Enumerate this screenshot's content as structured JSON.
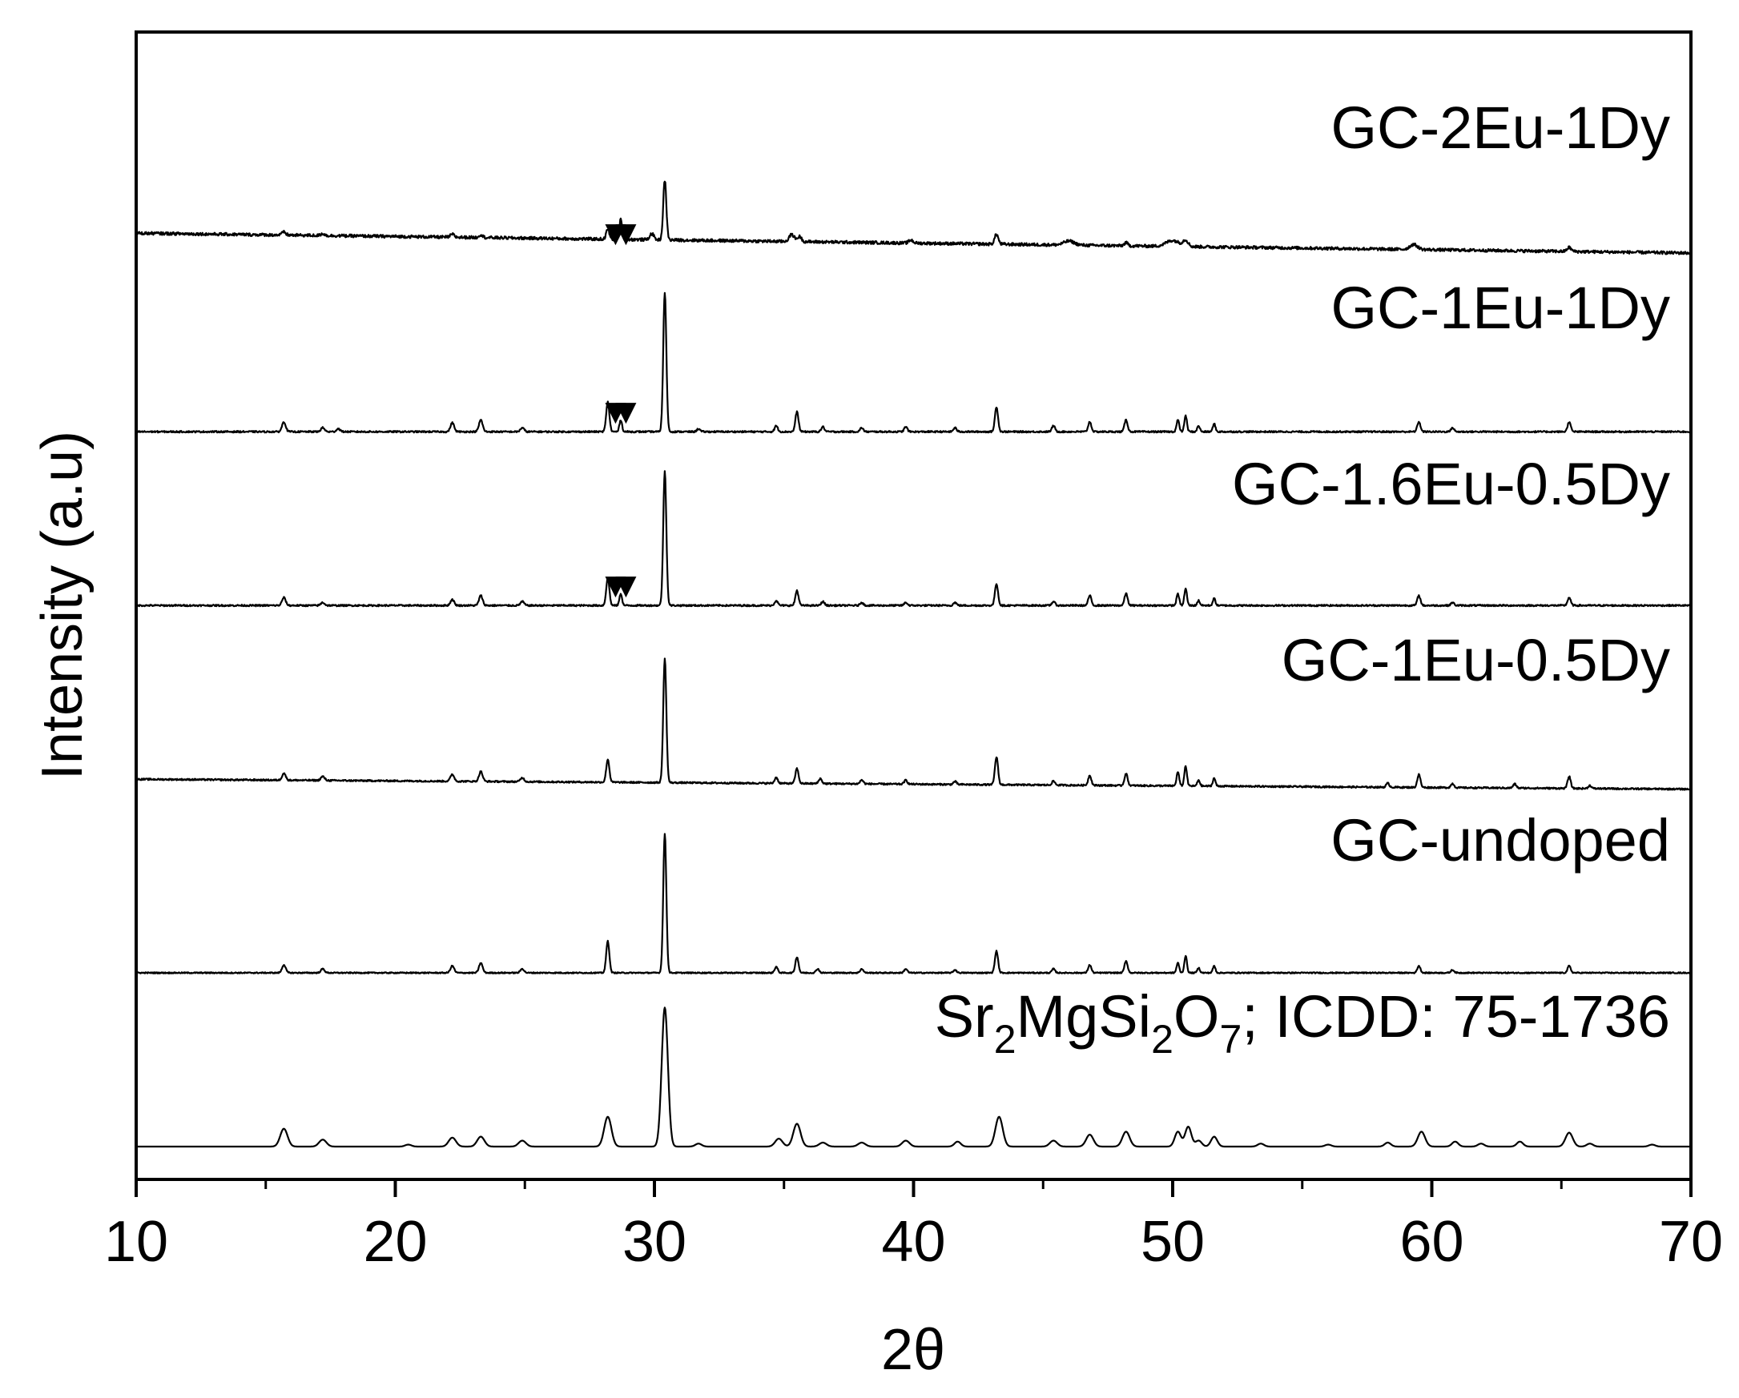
{
  "chart_data": {
    "type": "line",
    "xlabel": "2θ",
    "ylabel": "Intensity (a.u)",
    "xlim": [
      10,
      70
    ],
    "xticks": [
      "10",
      "20",
      "30",
      "40",
      "50",
      "60",
      "70"
    ],
    "xtick_values": [
      10,
      20,
      30,
      40,
      50,
      60,
      70
    ],
    "minor_xtick_values": [
      15,
      25,
      35,
      45,
      55,
      65
    ],
    "ylim": [
      0,
      11.5
    ],
    "yticks": [],
    "grid": false,
    "legend": "none",
    "marker_symbol": "▼",
    "series": [
      {
        "name": "Sr2MgSi2O7; ICDD: 75-1736",
        "label_parts": [
          {
            "t": "Sr",
            "sub": false
          },
          {
            "t": "2",
            "sub": true
          },
          {
            "t": "MgSi",
            "sub": false
          },
          {
            "t": "2",
            "sub": true
          },
          {
            "t": "O",
            "sub": false
          },
          {
            "t": "7",
            "sub": true
          },
          {
            "t": "; ICDD: 75-1736",
            "sub": false
          }
        ],
        "baseline": 0.0,
        "slope": 0.0,
        "noise": 0.0,
        "peaks": [
          [
            15.7,
            0.18,
            0.14
          ],
          [
            17.2,
            0.07,
            0.14
          ],
          [
            20.5,
            0.02,
            0.12
          ],
          [
            22.2,
            0.09,
            0.14
          ],
          [
            23.3,
            0.1,
            0.14
          ],
          [
            24.9,
            0.06,
            0.14
          ],
          [
            28.2,
            0.3,
            0.14
          ],
          [
            30.4,
            1.4,
            0.12
          ],
          [
            31.7,
            0.03,
            0.12
          ],
          [
            34.8,
            0.08,
            0.14
          ],
          [
            35.5,
            0.23,
            0.14
          ],
          [
            36.5,
            0.04,
            0.14
          ],
          [
            38.0,
            0.04,
            0.14
          ],
          [
            39.7,
            0.06,
            0.14
          ],
          [
            41.7,
            0.05,
            0.12
          ],
          [
            43.3,
            0.3,
            0.14
          ],
          [
            45.4,
            0.06,
            0.14
          ],
          [
            46.8,
            0.12,
            0.14
          ],
          [
            48.2,
            0.15,
            0.14
          ],
          [
            50.2,
            0.15,
            0.12
          ],
          [
            50.6,
            0.2,
            0.12
          ],
          [
            51.0,
            0.06,
            0.12
          ],
          [
            51.6,
            0.1,
            0.12
          ],
          [
            53.4,
            0.03,
            0.12
          ],
          [
            56.0,
            0.02,
            0.12
          ],
          [
            58.3,
            0.04,
            0.12
          ],
          [
            59.6,
            0.15,
            0.14
          ],
          [
            60.9,
            0.05,
            0.12
          ],
          [
            61.9,
            0.03,
            0.12
          ],
          [
            63.4,
            0.05,
            0.12
          ],
          [
            65.3,
            0.14,
            0.14
          ],
          [
            66.1,
            0.03,
            0.12
          ],
          [
            68.5,
            0.02,
            0.12
          ]
        ],
        "arrows": []
      },
      {
        "name": "GC-undoped",
        "baseline": 1.75,
        "slope": 0.0,
        "noise": 0.006,
        "peaks": [
          [
            15.7,
            0.08,
            0.07
          ],
          [
            17.2,
            0.04,
            0.07
          ],
          [
            22.2,
            0.07,
            0.07
          ],
          [
            23.3,
            0.1,
            0.07
          ],
          [
            24.9,
            0.04,
            0.07
          ],
          [
            28.2,
            0.32,
            0.06
          ],
          [
            30.4,
            1.4,
            0.06
          ],
          [
            34.7,
            0.06,
            0.06
          ],
          [
            35.5,
            0.16,
            0.06
          ],
          [
            36.3,
            0.04,
            0.06
          ],
          [
            38.0,
            0.04,
            0.06
          ],
          [
            39.7,
            0.04,
            0.06
          ],
          [
            41.6,
            0.03,
            0.06
          ],
          [
            43.2,
            0.22,
            0.06
          ],
          [
            45.4,
            0.04,
            0.06
          ],
          [
            46.8,
            0.08,
            0.06
          ],
          [
            48.2,
            0.12,
            0.06
          ],
          [
            50.2,
            0.1,
            0.05
          ],
          [
            50.5,
            0.17,
            0.05
          ],
          [
            51.0,
            0.05,
            0.05
          ],
          [
            51.6,
            0.07,
            0.05
          ],
          [
            59.5,
            0.07,
            0.06
          ],
          [
            60.8,
            0.03,
            0.06
          ],
          [
            65.3,
            0.07,
            0.06
          ]
        ],
        "arrows": []
      },
      {
        "name": "GC-1Eu-0.5Dy",
        "baseline": 3.6,
        "slope": 0.1,
        "noise": 0.008,
        "peaks": [
          [
            15.7,
            0.07,
            0.07
          ],
          [
            17.2,
            0.04,
            0.07
          ],
          [
            22.2,
            0.07,
            0.07
          ],
          [
            23.3,
            0.1,
            0.07
          ],
          [
            24.9,
            0.04,
            0.07
          ],
          [
            28.2,
            0.23,
            0.06
          ],
          [
            30.4,
            1.25,
            0.06
          ],
          [
            34.7,
            0.06,
            0.06
          ],
          [
            35.5,
            0.15,
            0.06
          ],
          [
            36.4,
            0.05,
            0.06
          ],
          [
            38.0,
            0.04,
            0.06
          ],
          [
            39.7,
            0.04,
            0.06
          ],
          [
            41.6,
            0.03,
            0.06
          ],
          [
            43.2,
            0.28,
            0.06
          ],
          [
            45.4,
            0.04,
            0.06
          ],
          [
            46.8,
            0.1,
            0.06
          ],
          [
            48.2,
            0.12,
            0.06
          ],
          [
            50.2,
            0.14,
            0.05
          ],
          [
            50.5,
            0.2,
            0.05
          ],
          [
            51.0,
            0.06,
            0.05
          ],
          [
            51.6,
            0.08,
            0.05
          ],
          [
            58.3,
            0.04,
            0.06
          ],
          [
            59.5,
            0.13,
            0.06
          ],
          [
            60.8,
            0.04,
            0.06
          ],
          [
            63.2,
            0.04,
            0.06
          ],
          [
            65.3,
            0.12,
            0.06
          ],
          [
            66.1,
            0.03,
            0.06
          ]
        ],
        "arrows": []
      },
      {
        "name": "GC-1.6Eu-0.5Dy",
        "baseline": 5.45,
        "slope": 0.0,
        "noise": 0.008,
        "peaks": [
          [
            15.7,
            0.08,
            0.07
          ],
          [
            17.2,
            0.03,
            0.07
          ],
          [
            22.2,
            0.06,
            0.07
          ],
          [
            23.3,
            0.1,
            0.07
          ],
          [
            24.9,
            0.04,
            0.07
          ],
          [
            28.2,
            0.28,
            0.06
          ],
          [
            28.7,
            0.12,
            0.05
          ],
          [
            30.4,
            1.35,
            0.06
          ],
          [
            34.7,
            0.05,
            0.06
          ],
          [
            35.5,
            0.15,
            0.06
          ],
          [
            36.5,
            0.04,
            0.06
          ],
          [
            38.0,
            0.03,
            0.06
          ],
          [
            39.7,
            0.03,
            0.06
          ],
          [
            41.6,
            0.03,
            0.06
          ],
          [
            43.2,
            0.22,
            0.06
          ],
          [
            45.4,
            0.04,
            0.06
          ],
          [
            46.8,
            0.1,
            0.06
          ],
          [
            48.2,
            0.12,
            0.06
          ],
          [
            50.2,
            0.12,
            0.05
          ],
          [
            50.5,
            0.17,
            0.05
          ],
          [
            51.0,
            0.05,
            0.05
          ],
          [
            51.6,
            0.07,
            0.05
          ],
          [
            59.5,
            0.1,
            0.06
          ],
          [
            60.8,
            0.03,
            0.06
          ],
          [
            65.3,
            0.08,
            0.06
          ]
        ],
        "arrows": [
          28.5,
          28.9
        ]
      },
      {
        "name": "GC-1Eu-1Dy",
        "baseline": 7.2,
        "slope": 0.0,
        "noise": 0.008,
        "peaks": [
          [
            15.7,
            0.1,
            0.07
          ],
          [
            17.2,
            0.04,
            0.07
          ],
          [
            17.8,
            0.03,
            0.07
          ],
          [
            22.2,
            0.09,
            0.07
          ],
          [
            23.3,
            0.12,
            0.07
          ],
          [
            24.9,
            0.04,
            0.07
          ],
          [
            28.2,
            0.3,
            0.06
          ],
          [
            28.7,
            0.12,
            0.05
          ],
          [
            30.4,
            1.4,
            0.06
          ],
          [
            31.7,
            0.03,
            0.06
          ],
          [
            34.7,
            0.06,
            0.06
          ],
          [
            35.5,
            0.2,
            0.06
          ],
          [
            36.5,
            0.05,
            0.06
          ],
          [
            38.0,
            0.04,
            0.06
          ],
          [
            39.7,
            0.05,
            0.06
          ],
          [
            41.6,
            0.04,
            0.06
          ],
          [
            43.2,
            0.25,
            0.06
          ],
          [
            45.4,
            0.06,
            0.06
          ],
          [
            46.8,
            0.1,
            0.06
          ],
          [
            48.2,
            0.12,
            0.06
          ],
          [
            50.2,
            0.12,
            0.05
          ],
          [
            50.5,
            0.16,
            0.05
          ],
          [
            51.0,
            0.06,
            0.05
          ],
          [
            51.6,
            0.08,
            0.05
          ],
          [
            59.5,
            0.1,
            0.06
          ],
          [
            60.8,
            0.04,
            0.06
          ],
          [
            65.3,
            0.1,
            0.06
          ]
        ],
        "arrows": [
          28.5,
          28.9
        ]
      },
      {
        "name": "GC-2Eu-1Dy",
        "baseline": 9.0,
        "slope": 0.2,
        "noise": 0.015,
        "peaks": [
          [
            15.7,
            0.03,
            0.07
          ],
          [
            17.2,
            0.02,
            0.07
          ],
          [
            22.2,
            0.03,
            0.07
          ],
          [
            23.3,
            0.03,
            0.07
          ],
          [
            28.2,
            0.1,
            0.06
          ],
          [
            28.7,
            0.2,
            0.05
          ],
          [
            29.9,
            0.06,
            0.08
          ],
          [
            30.4,
            0.6,
            0.06
          ],
          [
            35.3,
            0.07,
            0.1
          ],
          [
            35.6,
            0.05,
            0.08
          ],
          [
            39.9,
            0.03,
            0.08
          ],
          [
            43.2,
            0.1,
            0.07
          ],
          [
            46.0,
            0.04,
            0.2
          ],
          [
            48.2,
            0.03,
            0.07
          ],
          [
            50.0,
            0.06,
            0.25
          ],
          [
            50.5,
            0.06,
            0.1
          ],
          [
            59.3,
            0.05,
            0.15
          ],
          [
            65.3,
            0.04,
            0.08
          ]
        ],
        "arrows": [
          28.5,
          28.9
        ]
      }
    ]
  }
}
